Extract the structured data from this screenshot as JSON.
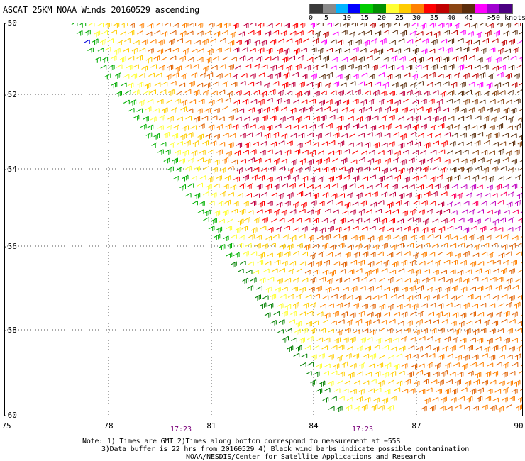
{
  "title": "ASCAT 25KM NOAA Winds 20160529 ascending",
  "legend": {
    "colors": [
      "#3a3a3a",
      "#8a8a8a",
      "#00b4ff",
      "#0000ff",
      "#00cc00",
      "#009000",
      "#ffff33",
      "#ffcc00",
      "#ff8000",
      "#ff0000",
      "#c00000",
      "#8b4513",
      "#5a2d0c",
      "#ff00ff",
      "#a000d0",
      "#4b0082"
    ],
    "labels": [
      "0",
      "5",
      "10",
      "15",
      "20",
      "25",
      "30",
      "35",
      "40",
      "45",
      ">50 knots"
    ]
  },
  "map": {
    "lat_labels": [
      "-50",
      "-52",
      "-54",
      "-56",
      "-58",
      "-60"
    ],
    "lon_labels": [
      "75",
      "78",
      "81",
      "84",
      "87",
      "90"
    ]
  },
  "times": [
    "17:23",
    "17:23"
  ],
  "notes": [
    "Note: 1) Times are GMT 2)Times along bottom correspond to measurement at −55S",
    "3)Data buffer is 22 hrs from 20160529 4) Black wind barbs indicate possible contamination",
    "NOAA/NESDIS/Center for Satellite Applications and Research"
  ]
}
